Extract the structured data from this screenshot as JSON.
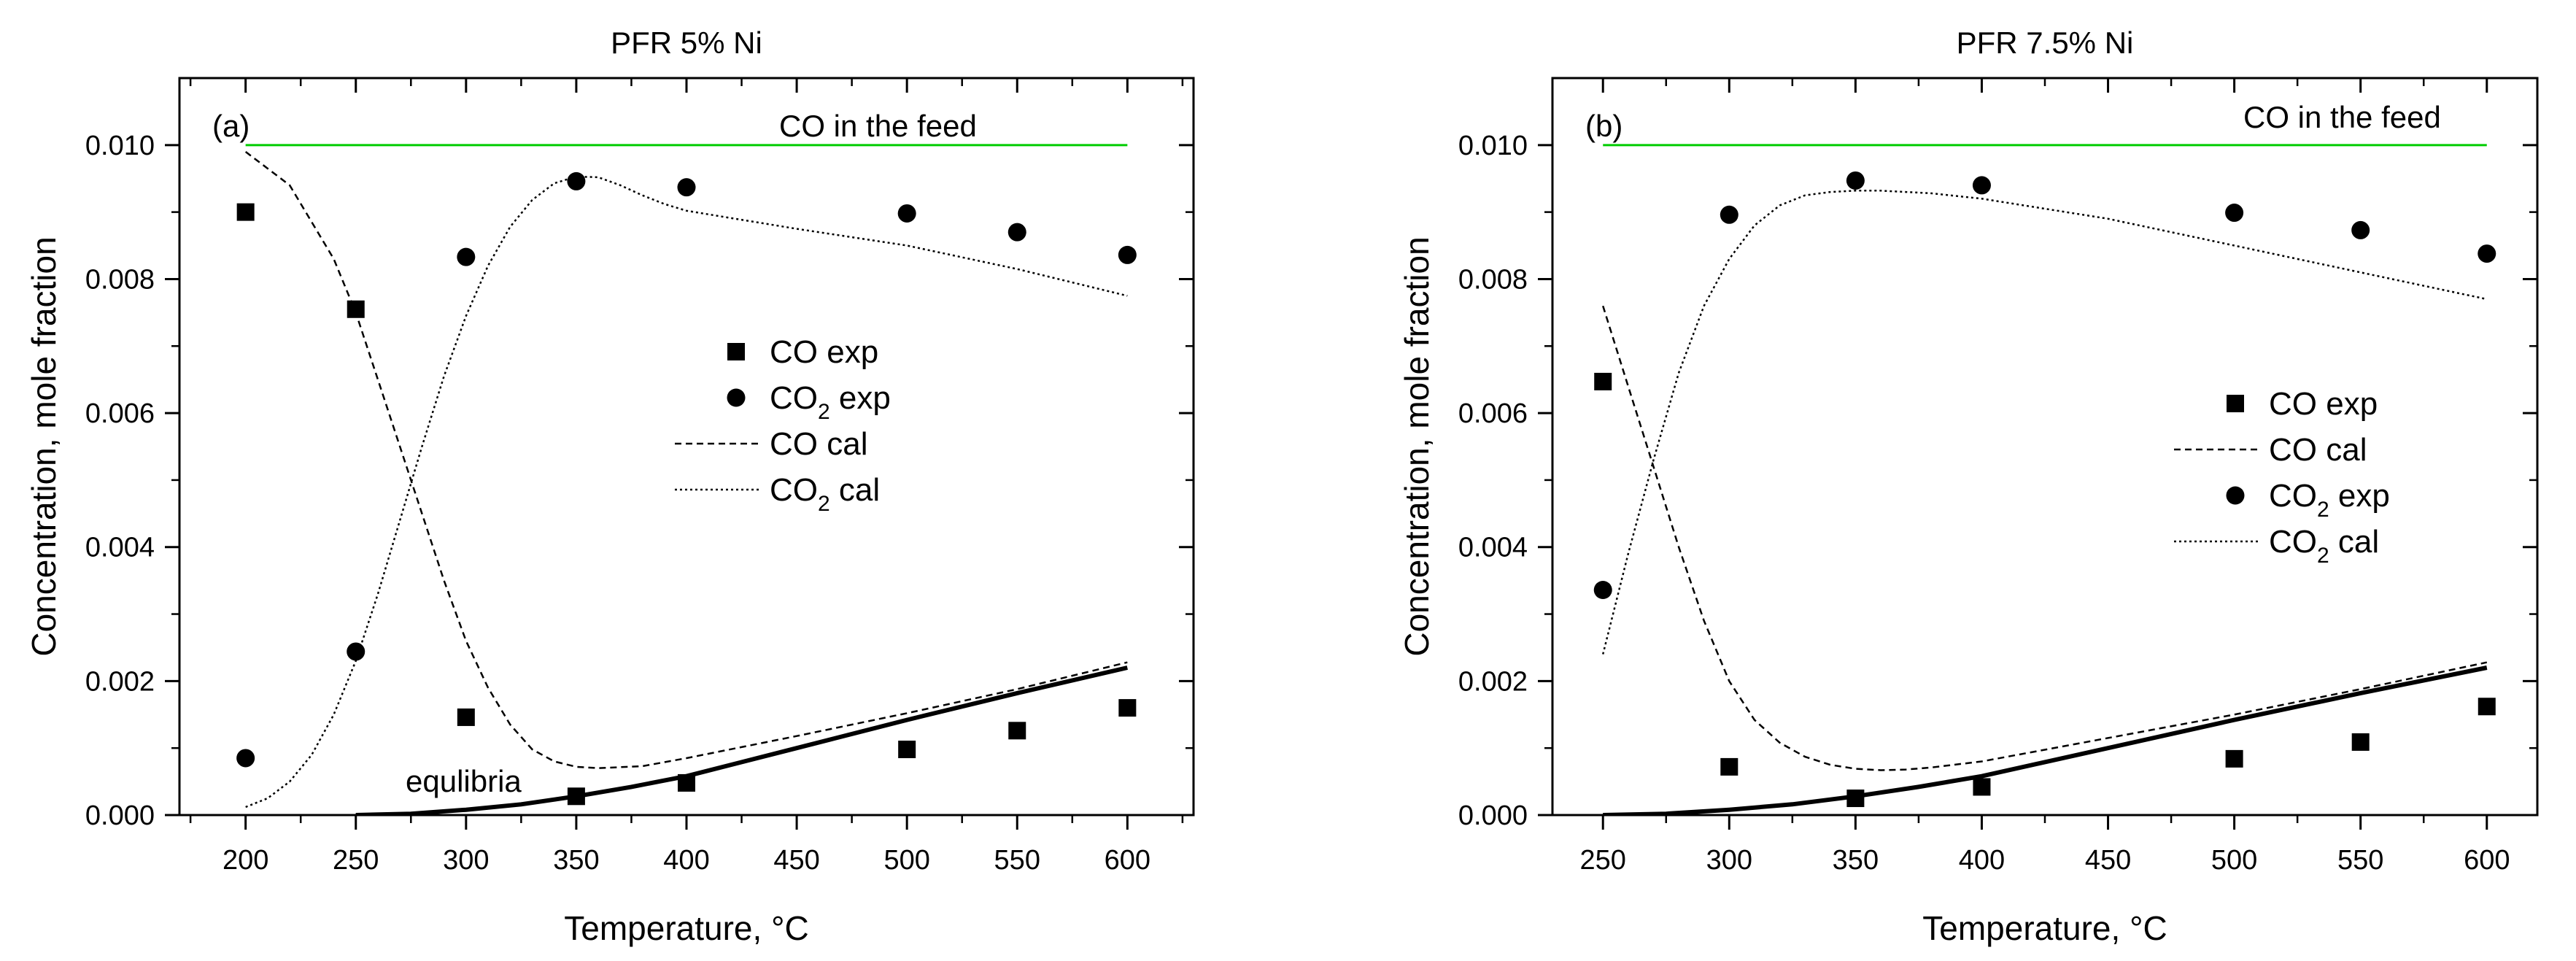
{
  "figure": {
    "background": "#ffffff",
    "text_color": "#000000",
    "feed_color": "#00cc00"
  },
  "chart_data": [
    {
      "type": "scatter",
      "id": "a",
      "title": "PFR 5% Ni",
      "panel_label": "(a)",
      "xlabel": "Temperature, °C",
      "ylabel": "Concentration, mole fraction",
      "xlim": [
        170,
        630
      ],
      "ylim": [
        0,
        0.011
      ],
      "xticks": [
        "200",
        "250",
        "300",
        "350",
        "400",
        "450",
        "500",
        "550",
        "600"
      ],
      "yticks": [
        "0.000",
        "0.002",
        "0.004",
        "0.006",
        "0.008",
        "0.010"
      ],
      "feed_line": {
        "label": "CO in the feed",
        "y": 0.01,
        "x": [
          200,
          600
        ]
      },
      "equilibria_label": "equlibria",
      "legend": [
        {
          "label": "CO exp",
          "sub": "",
          "marker": "square"
        },
        {
          "label": "CO",
          "sub": "2",
          "after": " exp",
          "marker": "circle"
        },
        {
          "label": "CO cal",
          "sub": "",
          "line": "dashed"
        },
        {
          "label": "CO",
          "sub": "2",
          "after": " cal",
          "line": "dotted"
        }
      ],
      "series": [
        {
          "name": "CO exp",
          "kind": "square",
          "x": [
            200,
            250,
            300,
            350,
            400,
            500,
            550,
            600
          ],
          "y": [
            0.009,
            0.00755,
            0.00146,
            0.00028,
            0.00048,
            0.00098,
            0.00126,
            0.0016
          ]
        },
        {
          "name": "CO2 exp",
          "kind": "circle",
          "x": [
            200,
            250,
            300,
            350,
            400,
            500,
            550,
            600
          ],
          "y": [
            0.00085,
            0.00244,
            0.00833,
            0.00946,
            0.00937,
            0.00898,
            0.0087,
            0.00836
          ]
        },
        {
          "name": "CO cal",
          "kind": "dashed",
          "x": [
            200,
            220,
            240,
            250,
            260,
            270,
            280,
            290,
            300,
            310,
            320,
            330,
            340,
            350,
            360,
            380,
            400,
            450,
            500,
            550,
            600
          ],
          "y": [
            0.0099,
            0.0094,
            0.0083,
            0.0075,
            0.0065,
            0.0055,
            0.0045,
            0.0035,
            0.0026,
            0.0019,
            0.00135,
            0.00098,
            0.0008,
            0.00072,
            0.0007,
            0.00073,
            0.00085,
            0.00118,
            0.00152,
            0.00188,
            0.00228
          ]
        },
        {
          "name": "CO2 cal",
          "kind": "dotted",
          "x": [
            200,
            210,
            220,
            230,
            240,
            250,
            260,
            270,
            280,
            290,
            300,
            310,
            320,
            330,
            340,
            350,
            360,
            370,
            380,
            390,
            400,
            450,
            500,
            550,
            600
          ],
          "y": [
            0.00012,
            0.00025,
            0.0005,
            0.0009,
            0.0015,
            0.0023,
            0.0033,
            0.0044,
            0.0055,
            0.00655,
            0.00745,
            0.0082,
            0.00878,
            0.00918,
            0.00943,
            0.00953,
            0.00952,
            0.0094,
            0.00925,
            0.00912,
            0.00902,
            0.00875,
            0.0085,
            0.00815,
            0.00775
          ]
        },
        {
          "name": "equilibria",
          "kind": "solid",
          "x": [
            250,
            275,
            300,
            325,
            350,
            375,
            400,
            450,
            500,
            550,
            600
          ],
          "y": [
            0.0,
            2e-05,
            8e-05,
            0.00016,
            0.00028,
            0.00042,
            0.00058,
            0.001,
            0.00142,
            0.00182,
            0.0022
          ]
        }
      ]
    },
    {
      "type": "scatter",
      "id": "b",
      "title": "PFR 7.5% Ni",
      "panel_label": "(b)",
      "xlabel": "Temperature, °C",
      "ylabel": "Concentration, mole fraction",
      "xlim": [
        230,
        620
      ],
      "ylim": [
        0,
        0.011
      ],
      "xticks": [
        "250",
        "300",
        "350",
        "400",
        "450",
        "500",
        "550",
        "600"
      ],
      "yticks": [
        "0.000",
        "0.002",
        "0.004",
        "0.006",
        "0.008",
        "0.010"
      ],
      "feed_line": {
        "label": "CO in the feed",
        "y": 0.01,
        "x": [
          250,
          600
        ]
      },
      "equilibria_label": "",
      "legend": [
        {
          "label": "CO exp",
          "sub": "",
          "marker": "square"
        },
        {
          "label": "CO cal",
          "sub": "",
          "line": "dashed"
        },
        {
          "label": "CO",
          "sub": "2",
          "after": " exp",
          "marker": "circle"
        },
        {
          "label": "CO",
          "sub": "2",
          "after": " cal",
          "line": "dotted"
        }
      ],
      "series": [
        {
          "name": "CO exp",
          "kind": "square",
          "x": [
            250,
            300,
            350,
            400,
            500,
            550,
            600
          ],
          "y": [
            0.00647,
            0.00072,
            0.00025,
            0.00042,
            0.00084,
            0.00109,
            0.00162
          ]
        },
        {
          "name": "CO2 exp",
          "kind": "circle",
          "x": [
            250,
            300,
            350,
            400,
            500,
            550,
            600
          ],
          "y": [
            0.00336,
            0.00896,
            0.00947,
            0.0094,
            0.00899,
            0.00873,
            0.00838
          ]
        },
        {
          "name": "CO cal",
          "kind": "dashed",
          "x": [
            250,
            260,
            270,
            280,
            290,
            300,
            310,
            320,
            330,
            340,
            350,
            360,
            370,
            380,
            400,
            450,
            500,
            550,
            600
          ],
          "y": [
            0.0076,
            0.0064,
            0.0052,
            0.004,
            0.0029,
            0.002,
            0.00142,
            0.00108,
            0.00087,
            0.00075,
            0.00069,
            0.00067,
            0.00068,
            0.00071,
            0.0008,
            0.00115,
            0.0015,
            0.00188,
            0.00228
          ]
        },
        {
          "name": "CO2 cal",
          "kind": "dotted",
          "x": [
            250,
            260,
            270,
            280,
            290,
            300,
            310,
            320,
            330,
            340,
            350,
            360,
            370,
            380,
            400,
            450,
            500,
            550,
            600
          ],
          "y": [
            0.0024,
            0.0039,
            0.0053,
            0.0066,
            0.0076,
            0.0083,
            0.0088,
            0.0091,
            0.00925,
            0.0093,
            0.00932,
            0.00932,
            0.0093,
            0.00928,
            0.0092,
            0.0089,
            0.0085,
            0.0081,
            0.0077
          ]
        },
        {
          "name": "equilibria",
          "kind": "solid",
          "x": [
            250,
            275,
            300,
            325,
            350,
            375,
            400,
            450,
            500,
            550,
            600
          ],
          "y": [
            0.0,
            2e-05,
            8e-05,
            0.00016,
            0.00028,
            0.00042,
            0.00058,
            0.001,
            0.00142,
            0.00182,
            0.0022
          ]
        }
      ]
    }
  ]
}
